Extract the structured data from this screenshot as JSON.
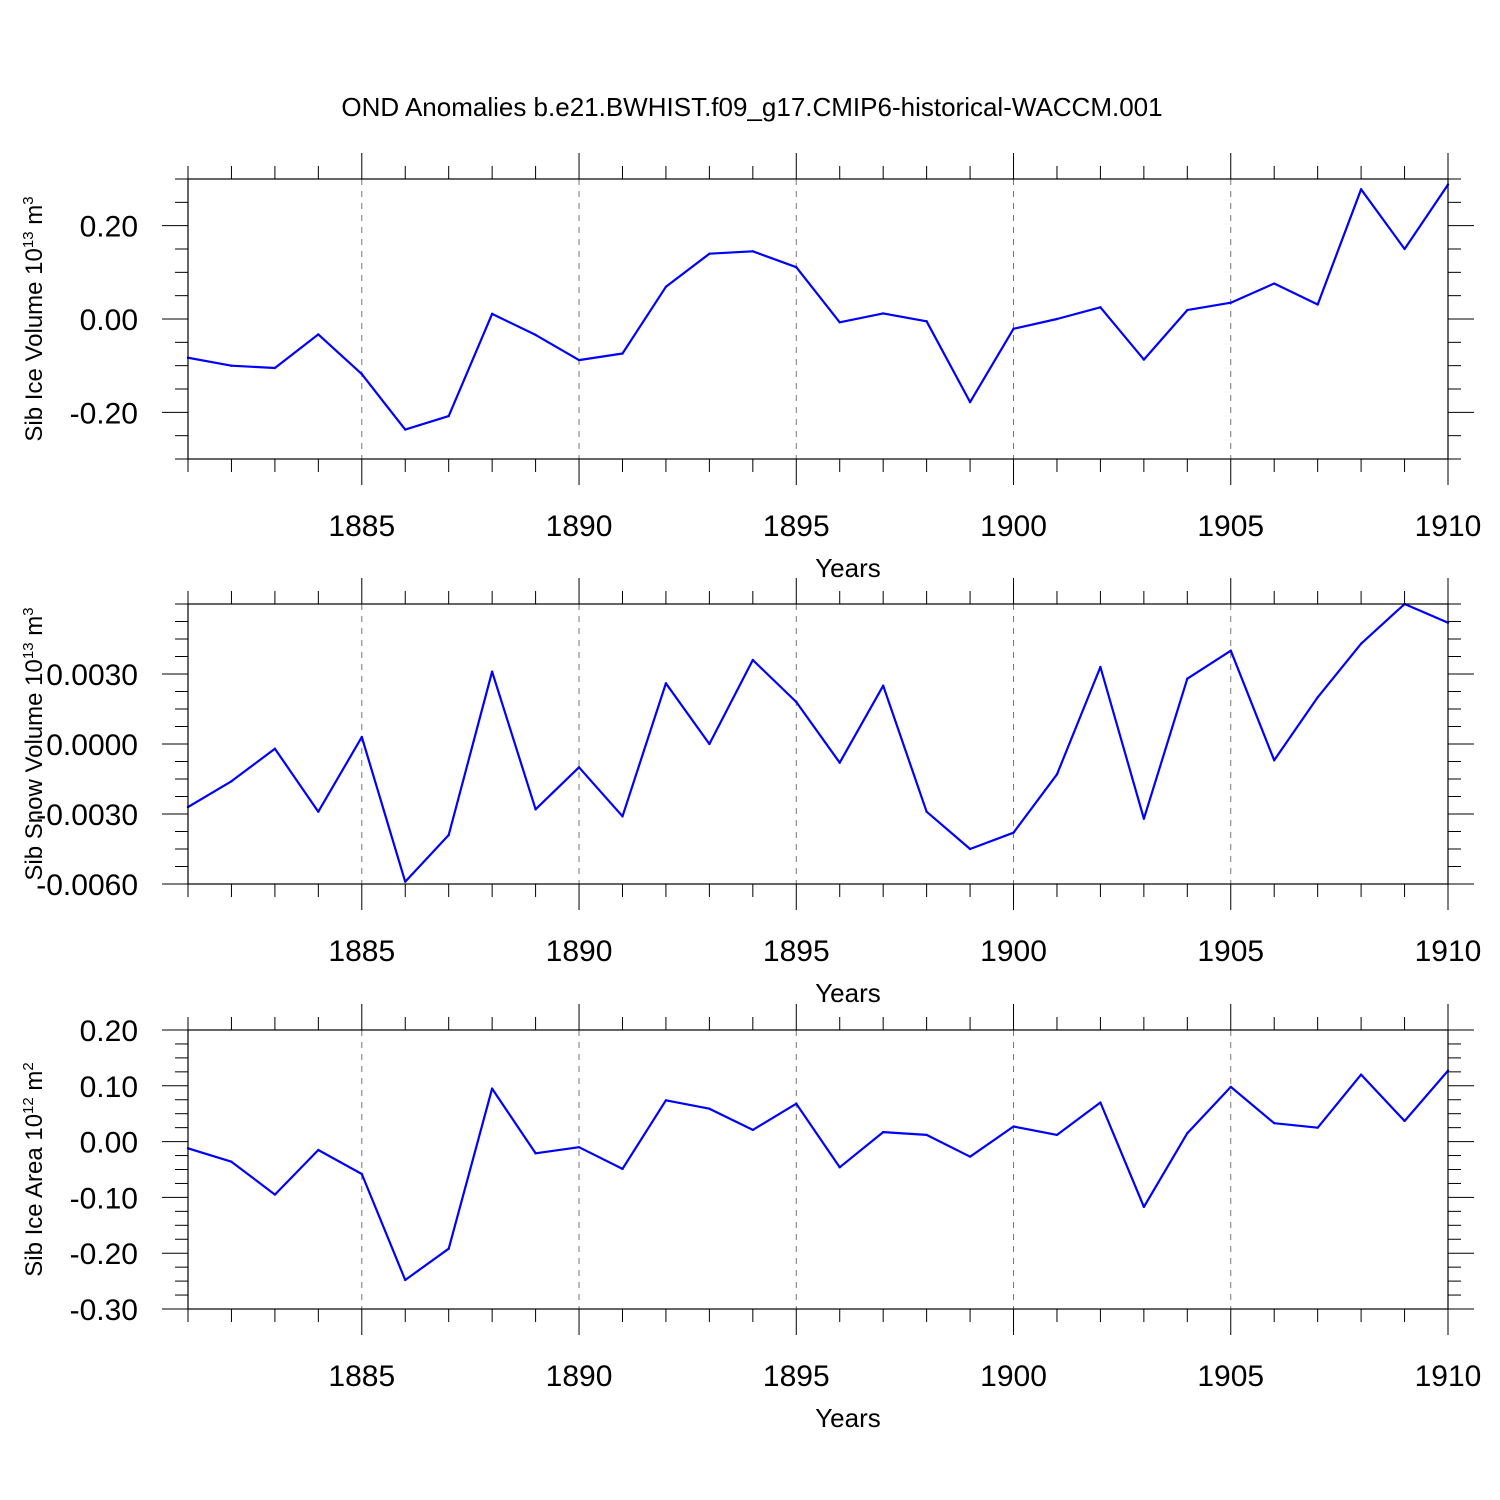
{
  "title": "OND Anomalies b.e21.BWHIST.f09_g17.CMIP6-historical-WACCM.001",
  "line_color": "#0000ff",
  "chart_data": [
    {
      "type": "line",
      "ylabel_text": "Sib Ice Volume 10",
      "ylabel_exp": "13",
      "ylabel_unit": " m",
      "ylabel_unit_exp": "3",
      "xlabel": "Years",
      "xlim": [
        1881,
        1910
      ],
      "ylim": [
        -0.3,
        0.3
      ],
      "yticks": [
        -0.2,
        0.0,
        0.2
      ],
      "ytick_labels": [
        "-0.20",
        "0.00",
        "0.20"
      ],
      "xticks": [
        1885,
        1890,
        1895,
        1900,
        1905,
        1910
      ],
      "xtick_labels": [
        "1885",
        "1890",
        "1895",
        "1900",
        "1905",
        "1910"
      ],
      "x": [
        1881,
        1882,
        1883,
        1884,
        1885,
        1886,
        1887,
        1888,
        1889,
        1890,
        1891,
        1892,
        1893,
        1894,
        1895,
        1896,
        1897,
        1898,
        1899,
        1900,
        1901,
        1902,
        1903,
        1904,
        1905,
        1906,
        1907,
        1908,
        1909,
        1910
      ],
      "values": [
        -0.083,
        -0.1,
        -0.105,
        -0.033,
        -0.118,
        -0.237,
        -0.208,
        0.011,
        -0.034,
        -0.088,
        -0.074,
        0.069,
        0.14,
        0.145,
        0.111,
        -0.007,
        0.012,
        -0.005,
        -0.178,
        -0.021,
        0.0,
        0.025,
        -0.087,
        0.019,
        0.035,
        0.076,
        0.031,
        0.278,
        0.15,
        0.288
      ]
    },
    {
      "type": "line",
      "ylabel_text": "Sib Snow Volume 10",
      "ylabel_exp": "13",
      "ylabel_unit": " m",
      "ylabel_unit_exp": "3",
      "xlabel": "Years",
      "xlim": [
        1881,
        1910
      ],
      "ylim": [
        -0.006,
        0.006
      ],
      "yticks": [
        -0.006,
        -0.003,
        0.0,
        0.003
      ],
      "ytick_labels": [
        "-0.0060",
        "-0.0030",
        "0.0000",
        "0.0030"
      ],
      "xticks": [
        1885,
        1890,
        1895,
        1900,
        1905,
        1910
      ],
      "xtick_labels": [
        "1885",
        "1890",
        "1895",
        "1900",
        "1905",
        "1910"
      ],
      "x": [
        1881,
        1882,
        1883,
        1884,
        1885,
        1886,
        1887,
        1888,
        1889,
        1890,
        1891,
        1892,
        1893,
        1894,
        1895,
        1896,
        1897,
        1898,
        1899,
        1900,
        1901,
        1902,
        1903,
        1904,
        1905,
        1906,
        1907,
        1908,
        1909,
        1910
      ],
      "values": [
        -0.0027,
        -0.0016,
        -0.0002,
        -0.0029,
        0.0003,
        -0.0059,
        -0.0039,
        0.0031,
        -0.0028,
        -0.001,
        -0.0031,
        0.0026,
        0.0,
        0.0036,
        0.0018,
        -0.0008,
        0.0025,
        -0.0029,
        -0.0045,
        -0.0038,
        -0.0013,
        0.0033,
        -0.0032,
        0.0028,
        0.004,
        -0.0007,
        0.002,
        0.0043,
        0.006,
        0.0052
      ]
    },
    {
      "type": "line",
      "ylabel_text": "Sib Ice Area 10",
      "ylabel_exp": "12",
      "ylabel_unit": " m",
      "ylabel_unit_exp": "2",
      "xlabel": "Years",
      "xlim": [
        1881,
        1910
      ],
      "ylim": [
        -0.3,
        0.2
      ],
      "yticks": [
        -0.3,
        -0.2,
        -0.1,
        0.0,
        0.1,
        0.2
      ],
      "ytick_labels": [
        "-0.30",
        "-0.20",
        "-0.10",
        "0.00",
        "0.10",
        "0.20"
      ],
      "xticks": [
        1885,
        1890,
        1895,
        1900,
        1905,
        1910
      ],
      "xtick_labels": [
        "1885",
        "1890",
        "1895",
        "1900",
        "1905",
        "1910"
      ],
      "x": [
        1881,
        1882,
        1883,
        1884,
        1885,
        1886,
        1887,
        1888,
        1889,
        1890,
        1891,
        1892,
        1893,
        1894,
        1895,
        1896,
        1897,
        1898,
        1899,
        1900,
        1901,
        1902,
        1903,
        1904,
        1905,
        1906,
        1907,
        1908,
        1909,
        1910
      ],
      "values": [
        -0.012,
        -0.036,
        -0.095,
        -0.015,
        -0.058,
        -0.248,
        -0.192,
        0.095,
        -0.021,
        -0.01,
        -0.049,
        0.074,
        0.059,
        0.021,
        0.068,
        -0.046,
        0.017,
        0.012,
        -0.027,
        0.027,
        0.012,
        0.07,
        -0.117,
        0.015,
        0.098,
        0.033,
        0.025,
        0.12,
        0.037,
        0.127
      ]
    }
  ]
}
